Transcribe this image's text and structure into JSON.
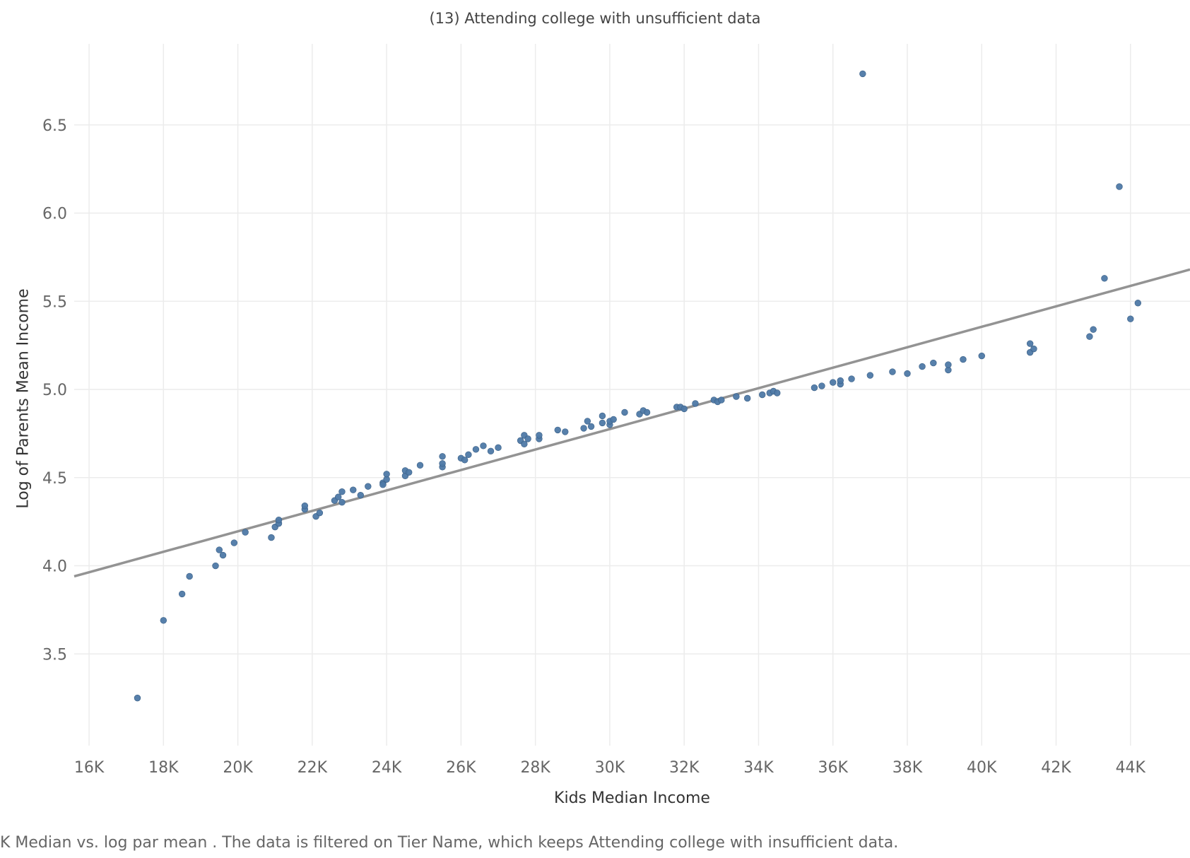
{
  "colors": {
    "point": "#4E79A7",
    "trend": "#939393",
    "grid": "#ececec",
    "tick_text": "#666666"
  },
  "chart_data": {
    "type": "scatter",
    "title": "(13) Attending college with unsufficient data",
    "xlabel": "Kids Median Income",
    "ylabel": "Log of Parents Mean Income",
    "caption": "K Median vs. log par mean . The data is filtered on Tier Name, which keeps Attending college with insufficient data.",
    "xlim": [
      15600,
      45600
    ],
    "ylim": [
      2.98,
      6.96
    ],
    "grid": true,
    "legend": "none",
    "x_ticks": [
      16000,
      18000,
      20000,
      22000,
      24000,
      26000,
      28000,
      30000,
      32000,
      34000,
      36000,
      38000,
      40000,
      42000,
      44000
    ],
    "x_tick_labels": [
      "16K",
      "18K",
      "20K",
      "22K",
      "24K",
      "26K",
      "28K",
      "30K",
      "32K",
      "34K",
      "36K",
      "38K",
      "40K",
      "42K",
      "44K"
    ],
    "y_ticks": [
      3.5,
      4.0,
      4.5,
      5.0,
      5.5,
      6.0,
      6.5
    ],
    "y_tick_labels": [
      "3.5",
      "4.0",
      "4.5",
      "5.0",
      "5.5",
      "6.0",
      "6.5"
    ],
    "trend_line": {
      "x": [
        15600,
        45600
      ],
      "y": [
        3.94,
        5.68
      ]
    },
    "series": [
      {
        "points": [
          {
            "x": 17300,
            "y": 3.25
          },
          {
            "x": 18000,
            "y": 3.69
          },
          {
            "x": 18500,
            "y": 3.84
          },
          {
            "x": 18700,
            "y": 3.94
          },
          {
            "x": 19400,
            "y": 4.0
          },
          {
            "x": 19500,
            "y": 4.09
          },
          {
            "x": 19600,
            "y": 4.06
          },
          {
            "x": 19900,
            "y": 4.13
          },
          {
            "x": 20200,
            "y": 4.19
          },
          {
            "x": 20900,
            "y": 4.16
          },
          {
            "x": 21000,
            "y": 4.22
          },
          {
            "x": 21100,
            "y": 4.24
          },
          {
            "x": 21100,
            "y": 4.26
          },
          {
            "x": 21800,
            "y": 4.32
          },
          {
            "x": 21800,
            "y": 4.34
          },
          {
            "x": 22100,
            "y": 4.28
          },
          {
            "x": 22200,
            "y": 4.3
          },
          {
            "x": 22600,
            "y": 4.37
          },
          {
            "x": 22700,
            "y": 4.39
          },
          {
            "x": 22800,
            "y": 4.36
          },
          {
            "x": 22800,
            "y": 4.42
          },
          {
            "x": 23100,
            "y": 4.43
          },
          {
            "x": 23300,
            "y": 4.4
          },
          {
            "x": 23500,
            "y": 4.45
          },
          {
            "x": 23900,
            "y": 4.47
          },
          {
            "x": 23900,
            "y": 4.46
          },
          {
            "x": 24000,
            "y": 4.49
          },
          {
            "x": 24000,
            "y": 4.52
          },
          {
            "x": 24500,
            "y": 4.51
          },
          {
            "x": 24500,
            "y": 4.54
          },
          {
            "x": 24600,
            "y": 4.53
          },
          {
            "x": 24900,
            "y": 4.57
          },
          {
            "x": 25500,
            "y": 4.56
          },
          {
            "x": 25500,
            "y": 4.58
          },
          {
            "x": 25500,
            "y": 4.62
          },
          {
            "x": 26000,
            "y": 4.61
          },
          {
            "x": 26100,
            "y": 4.6
          },
          {
            "x": 26200,
            "y": 4.63
          },
          {
            "x": 26400,
            "y": 4.66
          },
          {
            "x": 26600,
            "y": 4.68
          },
          {
            "x": 26800,
            "y": 4.65
          },
          {
            "x": 27000,
            "y": 4.67
          },
          {
            "x": 27600,
            "y": 4.71
          },
          {
            "x": 27700,
            "y": 4.69
          },
          {
            "x": 27700,
            "y": 4.74
          },
          {
            "x": 27800,
            "y": 4.72
          },
          {
            "x": 28100,
            "y": 4.72
          },
          {
            "x": 28100,
            "y": 4.74
          },
          {
            "x": 28600,
            "y": 4.77
          },
          {
            "x": 28800,
            "y": 4.76
          },
          {
            "x": 29300,
            "y": 4.78
          },
          {
            "x": 29400,
            "y": 4.82
          },
          {
            "x": 29500,
            "y": 4.79
          },
          {
            "x": 29800,
            "y": 4.81
          },
          {
            "x": 29800,
            "y": 4.85
          },
          {
            "x": 30000,
            "y": 4.8
          },
          {
            "x": 30000,
            "y": 4.82
          },
          {
            "x": 30100,
            "y": 4.83
          },
          {
            "x": 30400,
            "y": 4.87
          },
          {
            "x": 30800,
            "y": 4.86
          },
          {
            "x": 30900,
            "y": 4.88
          },
          {
            "x": 31000,
            "y": 4.87
          },
          {
            "x": 31800,
            "y": 4.9
          },
          {
            "x": 31900,
            "y": 4.9
          },
          {
            "x": 32000,
            "y": 4.89
          },
          {
            "x": 32300,
            "y": 4.92
          },
          {
            "x": 32800,
            "y": 4.94
          },
          {
            "x": 32900,
            "y": 4.93
          },
          {
            "x": 33000,
            "y": 4.94
          },
          {
            "x": 33400,
            "y": 4.96
          },
          {
            "x": 33700,
            "y": 4.95
          },
          {
            "x": 34100,
            "y": 4.97
          },
          {
            "x": 34300,
            "y": 4.98
          },
          {
            "x": 34400,
            "y": 4.99
          },
          {
            "x": 34500,
            "y": 4.98
          },
          {
            "x": 35500,
            "y": 5.01
          },
          {
            "x": 35700,
            "y": 5.02
          },
          {
            "x": 36000,
            "y": 5.04
          },
          {
            "x": 36200,
            "y": 5.03
          },
          {
            "x": 36200,
            "y": 5.05
          },
          {
            "x": 36500,
            "y": 5.06
          },
          {
            "x": 36800,
            "y": 6.79
          },
          {
            "x": 37000,
            "y": 5.08
          },
          {
            "x": 37600,
            "y": 5.1
          },
          {
            "x": 38000,
            "y": 5.09
          },
          {
            "x": 38400,
            "y": 5.13
          },
          {
            "x": 38700,
            "y": 5.15
          },
          {
            "x": 39100,
            "y": 5.11
          },
          {
            "x": 39100,
            "y": 5.14
          },
          {
            "x": 39500,
            "y": 5.17
          },
          {
            "x": 40000,
            "y": 5.19
          },
          {
            "x": 41300,
            "y": 5.21
          },
          {
            "x": 41300,
            "y": 5.26
          },
          {
            "x": 41400,
            "y": 5.23
          },
          {
            "x": 42900,
            "y": 5.3
          },
          {
            "x": 43000,
            "y": 5.34
          },
          {
            "x": 43300,
            "y": 5.63
          },
          {
            "x": 43700,
            "y": 6.15
          },
          {
            "x": 44000,
            "y": 5.4
          },
          {
            "x": 44200,
            "y": 5.49
          }
        ]
      }
    ]
  }
}
